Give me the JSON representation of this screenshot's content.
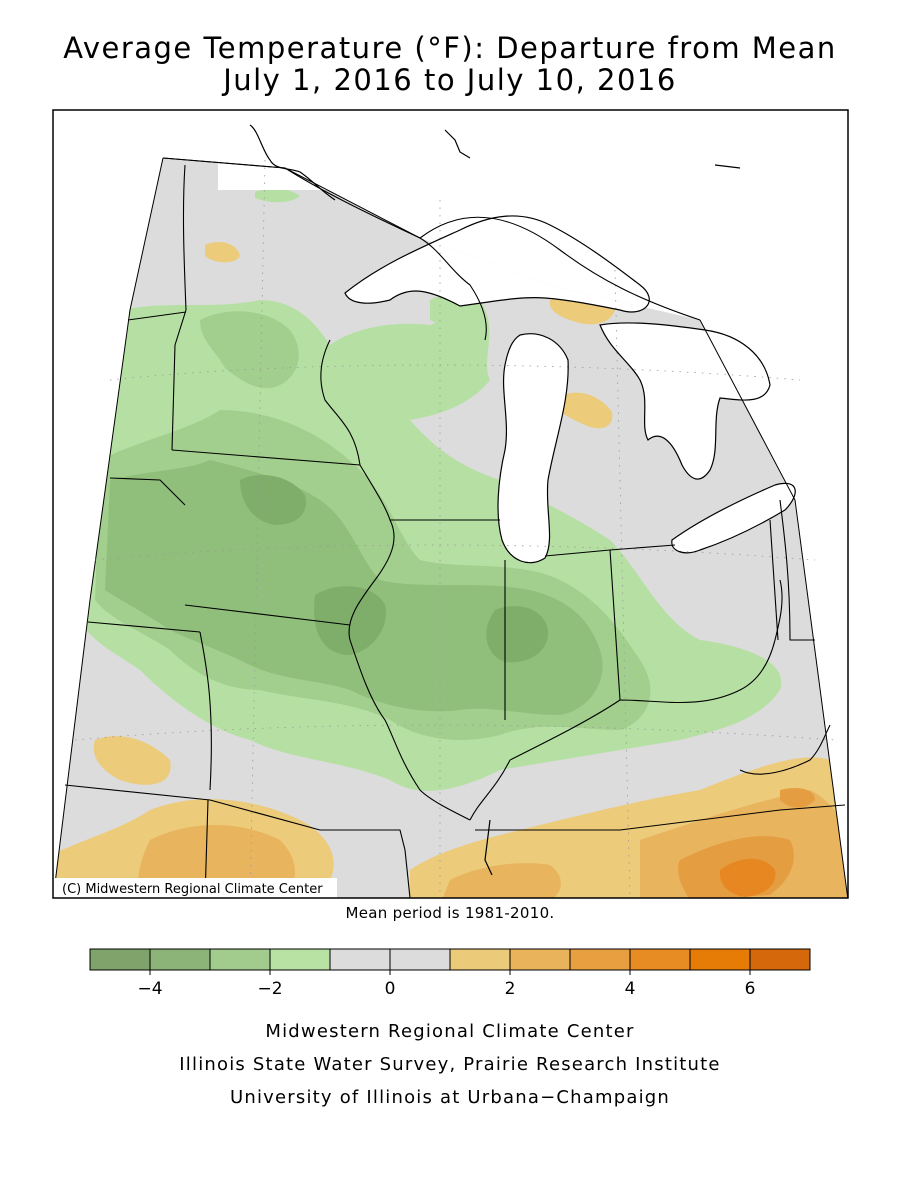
{
  "title": {
    "line1": "Average Temperature (°F): Departure from Mean",
    "line2": "July 1, 2016 to July 10, 2016"
  },
  "map": {
    "copyright": "(C) Midwestern Regional Climate Center",
    "mean_period": "Mean period is 1981-2010.",
    "colors": {
      "water": "#ffffff",
      "neutral": "#dcdcdc",
      "neg1": "#b6e0a3",
      "neg2": "#a2cf8d",
      "neg3": "#8fbf7a",
      "neg4": "#7fae6b",
      "pos1": "#eccb7a",
      "pos2": "#e9b45e",
      "pos3": "#e59d42",
      "pos4": "#e68722",
      "pos5": "#e47406"
    }
  },
  "legend": {
    "bins": [
      {
        "from": -5,
        "to": -4,
        "color": "#7fa36a"
      },
      {
        "from": -4,
        "to": -3,
        "color": "#8db478"
      },
      {
        "from": -3,
        "to": -2,
        "color": "#a2cc8d"
      },
      {
        "from": -2,
        "to": -1,
        "color": "#b8e1a4"
      },
      {
        "from": -1,
        "to": 0,
        "color": "#dcdcdc"
      },
      {
        "from": 0,
        "to": 1,
        "color": "#dcdcdc"
      },
      {
        "from": 1,
        "to": 2,
        "color": "#ebca79"
      },
      {
        "from": 2,
        "to": 3,
        "color": "#e9b35c"
      },
      {
        "from": 3,
        "to": 4,
        "color": "#e79f3f"
      },
      {
        "from": 4,
        "to": 5,
        "color": "#e68c22"
      },
      {
        "from": 5,
        "to": 6,
        "color": "#e67b06"
      },
      {
        "from": 6,
        "to": 7,
        "color": "#d4680a"
      }
    ],
    "tick_labels": [
      "−4",
      "−2",
      "0",
      "2",
      "4",
      "6"
    ],
    "tick_values": [
      -4,
      -2,
      0,
      2,
      4,
      6
    ]
  },
  "credits": [
    "Midwestern Regional Climate Center",
    "Illinois State Water Survey, Prairie Research Institute",
    "University of Illinois at Urbana−Champaign"
  ]
}
